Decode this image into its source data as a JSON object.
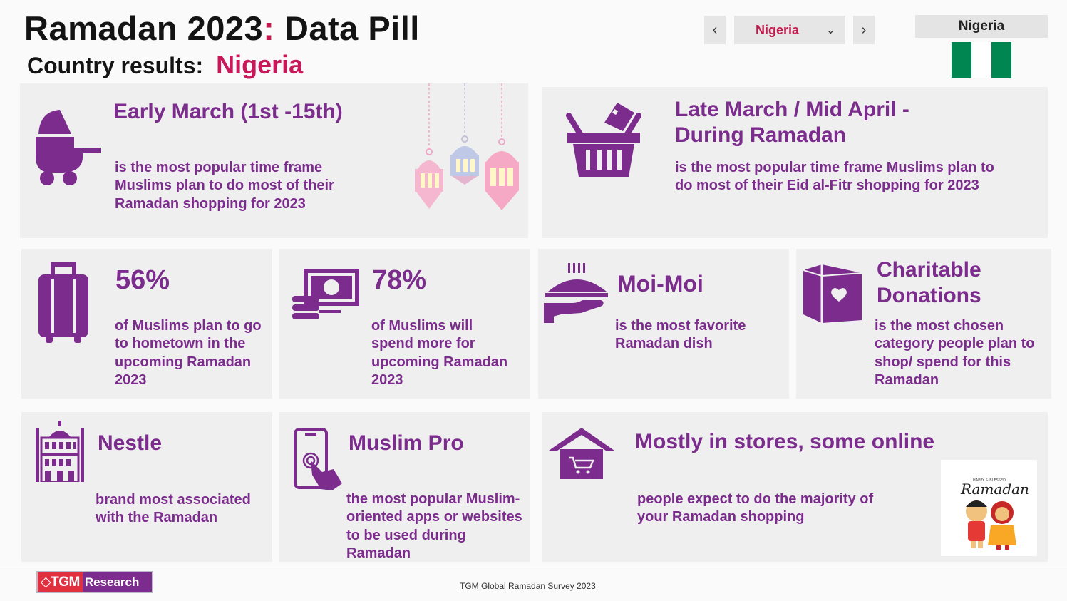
{
  "header": {
    "title_part1": "Ramadan 2023",
    "title_colon": ":",
    "title_part2": " Data Pill",
    "subtitle_label": "Country results:",
    "subtitle_country": "Nigeria"
  },
  "controls": {
    "prev_glyph": "‹",
    "next_glyph": "›",
    "selected_country": "Nigeria",
    "dropdown_glyph": "⌄"
  },
  "flag": {
    "label": "Nigeria",
    "colors": [
      "#008751",
      "#ffffff",
      "#008751"
    ]
  },
  "cards": {
    "ramadan_shopping": {
      "icon": "stroller-icon",
      "headline": "Early March (1st -15th)",
      "desc": "is the most popular time frame Muslims plan to do most of their Ramadan shopping for 2023"
    },
    "eid_shopping": {
      "icon": "basket-icon",
      "headline": "Late March / Mid April - During Ramadan",
      "desc": "is the most popular time frame Muslims plan to do most of their Eid al-Fitr shopping for 2023"
    },
    "hometown": {
      "icon": "luggage-icon",
      "value": "56%",
      "desc": "of Muslims plan to go to hometown in the upcoming Ramadan 2023"
    },
    "spend_more": {
      "icon": "money-icon",
      "value": "78%",
      "desc": "of Muslims will spend more for upcoming Ramadan 2023"
    },
    "dish": {
      "icon": "serving-dish-icon",
      "headline": "Moi-Moi",
      "desc": "is the most favorite Ramadan dish"
    },
    "category": {
      "icon": "donation-box-icon",
      "headline": "Charitable Donations",
      "desc": "is the most chosen category people plan to shop/ spend for this Ramadan"
    },
    "brand": {
      "icon": "mosque-icon",
      "headline": "Nestle",
      "desc": "brand most associated with the Ramadan"
    },
    "app": {
      "icon": "smartphone-touch-icon",
      "headline": "Muslim Pro",
      "desc": "the most popular Muslim-oriented apps or websites to be used during Ramadan"
    },
    "channel": {
      "icon": "store-cart-icon",
      "headline": "Mostly in stores, some online",
      "desc": "people expect to do the majority of your Ramadan shopping"
    }
  },
  "ramadan_sticker": {
    "small_text": "HAPPY & BLESSED",
    "script_text": "Ramadan"
  },
  "footer": {
    "logo_left": "◇TGM",
    "logo_right": "Research",
    "source": "TGM Global Ramadan Survey 2023"
  },
  "colors": {
    "accent": "#c0184f",
    "purple": "#7b2c8d",
    "card_bg": "#efefef"
  }
}
